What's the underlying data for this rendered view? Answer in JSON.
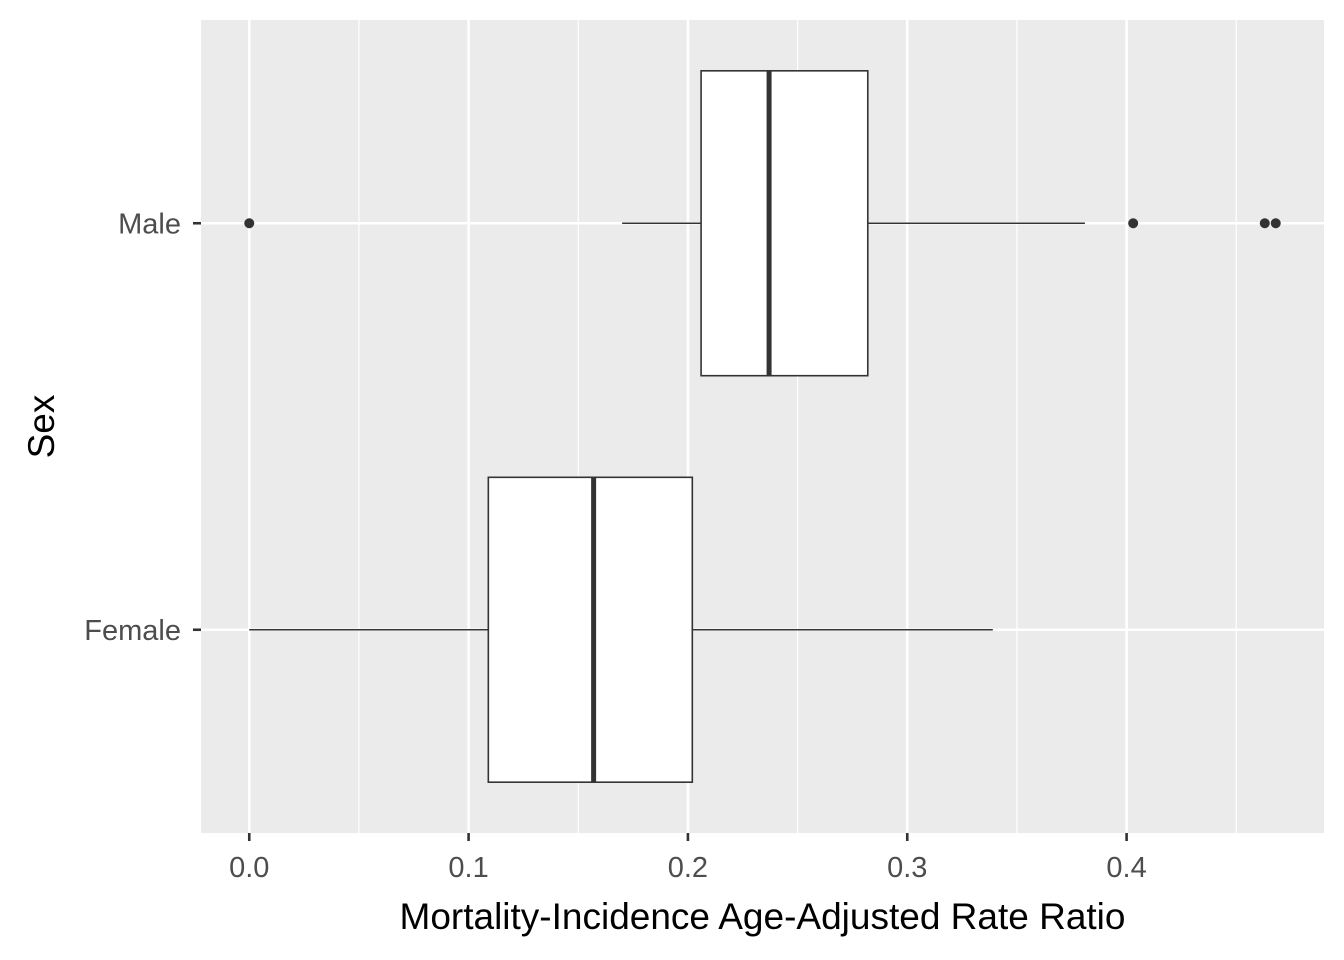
{
  "chart_data": {
    "type": "boxplot",
    "orientation": "horizontal",
    "title": "",
    "xlabel": "Mortality-Incidence Age-Adjusted Rate Ratio",
    "ylabel": "Sex",
    "xlim": [
      -0.022,
      0.49
    ],
    "x_ticks": [
      0.0,
      0.1,
      0.2,
      0.3,
      0.4
    ],
    "x_tick_labels": [
      "0.0",
      "0.1",
      "0.2",
      "0.3",
      "0.4"
    ],
    "categories": [
      "Male",
      "Female"
    ],
    "grid": true,
    "legend": "none",
    "boxes": [
      {
        "category": "Male",
        "whisker_low": 0.17,
        "q1": 0.206,
        "median": 0.237,
        "q3": 0.282,
        "whisker_high": 0.381,
        "outliers": [
          0.0,
          0.403,
          0.463,
          0.468
        ]
      },
      {
        "category": "Female",
        "whisker_low": 0.0,
        "q1": 0.109,
        "median": 0.157,
        "q3": 0.202,
        "whisker_high": 0.339,
        "outliers": []
      }
    ],
    "colors": {
      "panel": "#ebebeb",
      "grid": "#ffffff",
      "box_fill": "#ffffff",
      "box_stroke": "#333333",
      "text": "#4d4d4d"
    }
  }
}
